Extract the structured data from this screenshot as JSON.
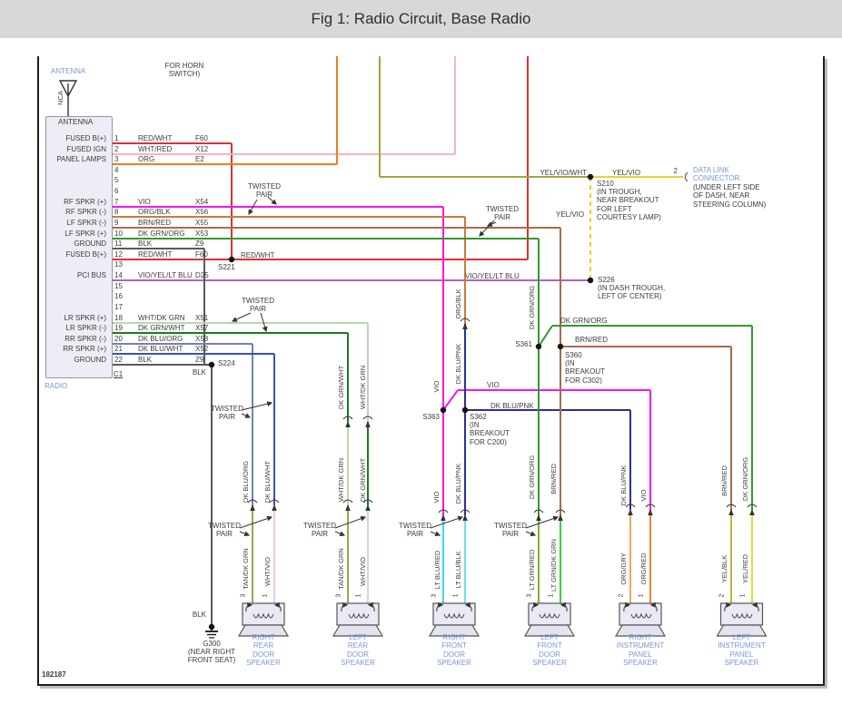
{
  "title": "Fig 1: Radio Circuit, Base Radio",
  "figure_id": "182187",
  "ui": {
    "title_bg": "#d8d8d8",
    "label_blue": "#7b96d8",
    "ink": "#3c3c3c",
    "component_fill": "#EDEDF6",
    "component_border": "#9494AE"
  },
  "notes": {
    "horn_switch": "FOR HORN\nSWITCH)"
  },
  "antenna": {
    "label": "ANTENNA",
    "box_label": "ANTENNA",
    "mast_label": "NCA"
  },
  "radio": {
    "label": "RADIO",
    "connector_label": "C1",
    "pins": [
      {
        "pin": "1",
        "function": "FUSED B(+)",
        "wire": "RED_WHT",
        "circuit": "F60"
      },
      {
        "pin": "2",
        "function": "FUSED IGN",
        "wire": "WHT_RED",
        "circuit": "X12"
      },
      {
        "pin": "3",
        "function": "PANEL LAMPS",
        "wire": "ORG",
        "circuit": "E2"
      },
      {
        "pin": "4"
      },
      {
        "pin": "5"
      },
      {
        "pin": "6"
      },
      {
        "pin": "7",
        "function": "RF SPKR (+)",
        "wire": "VIO",
        "circuit": "X54"
      },
      {
        "pin": "8",
        "function": "RF SPKR (-)",
        "wire": "ORG_BLK",
        "circuit": "X56"
      },
      {
        "pin": "9",
        "function": "LF SPKR (-)",
        "wire": "BRN_RED",
        "circuit": "X55"
      },
      {
        "pin": "10",
        "function": "LF SPKR (+)",
        "wire": "DK_GRN_ORG",
        "circuit": "X53"
      },
      {
        "pin": "11",
        "function": "GROUND",
        "wire": "BLK",
        "circuit": "Z9"
      },
      {
        "pin": "12",
        "function": "FUSED B(+)",
        "wire": "RED_WHT",
        "circuit": "F60"
      },
      {
        "pin": "13"
      },
      {
        "pin": "14",
        "function": "PCI BUS",
        "wire": "VIO_YEL_LT_BLU",
        "circuit": "D25"
      },
      {
        "pin": "15"
      },
      {
        "pin": "16"
      },
      {
        "pin": "17"
      },
      {
        "pin": "18",
        "function": "LR SPKR (+)",
        "wire": "WHT_DK_GRN",
        "circuit": "X51"
      },
      {
        "pin": "19",
        "function": "LR SPKR (-)",
        "wire": "DK_GRN_WHT",
        "circuit": "X57"
      },
      {
        "pin": "20",
        "function": "RR SPKR (-)",
        "wire": "DK_BLU_ORG",
        "circuit": "X58"
      },
      {
        "pin": "21",
        "function": "RR SPKR (+)",
        "wire": "DK_BLU_WHT",
        "circuit": "X52"
      },
      {
        "pin": "22",
        "function": "GROUND",
        "wire": "BLK",
        "circuit": "Z9"
      }
    ]
  },
  "wires": {
    "RED_WHT": {
      "label": "RED/WHT",
      "color": "#e0312d"
    },
    "WHT_RED": {
      "label": "WHT/RED",
      "color": "#f2b6be"
    },
    "ORG": {
      "label": "ORG",
      "color": "#f07d1e"
    },
    "YEL_VIO_WHT": {
      "label": "YEL/VIO/WHT",
      "color": "#a6a243"
    },
    "YEL_VIO": {
      "label": "YEL/VIO",
      "color": "#efd02c"
    },
    "VIO_YEL_LT_BLU": {
      "label": "VIO/YEL/LT BLU",
      "color": "#b361bc"
    },
    "VIO": {
      "label": "VIO",
      "color": "#f714f7"
    },
    "ORG_BLK": {
      "label": "ORG/BLK",
      "color": "#cd7a38"
    },
    "BRN_RED": {
      "label": "BRN/RED",
      "color": "#ad6a47"
    },
    "DK_GRN_ORG": {
      "label": "DK GRN/ORG",
      "color": "#2f9a32"
    },
    "BLK": {
      "label": "BLK",
      "color": "#5a5a5a"
    },
    "WHT_DK_GRN": {
      "label": "WHT/DK GRN",
      "color": "#b8d8ae"
    },
    "DK_GRN_WHT": {
      "label": "DK GRN/WHT",
      "color": "#177d1f"
    },
    "DK_BLU_ORG": {
      "label": "DK BLU/ORG",
      "color": "#7381b3"
    },
    "DK_BLU_WHT": {
      "label": "DK BLU/WHT",
      "color": "#3d50b5"
    },
    "DK_BLU_PNK": {
      "label": "DK BLU/PNK",
      "color": "#2c2f96"
    },
    "TAN_DK_GRN": {
      "label": "TAN/DK GRN",
      "color": "#a2a352"
    },
    "WHT_VIO": {
      "label": "WHT/VIO",
      "color": "#eac9ea"
    },
    "LT_BLU_RED": {
      "label": "LT BLU/RED",
      "color": "#43d7e8"
    },
    "LT_BLU_BLK": {
      "label": "LT BLU/BLK",
      "color": "#67e3ec"
    },
    "LT_GRN_RED": {
      "label": "LT GRN/RED",
      "color": "#7fae3a"
    },
    "LT_GRN_DK_GRN": {
      "label": "LT GRN/DK GRN",
      "color": "#3bcf3b"
    },
    "ORG_GRY": {
      "label": "ORG/GRY",
      "color": "#f2a85c"
    },
    "ORG_RED": {
      "label": "ORG/RED",
      "color": "#f28233"
    },
    "YEL_BLK": {
      "label": "YEL/BLK",
      "color": "#bdb732"
    },
    "YEL_RED": {
      "label": "YEL/RED",
      "color": "#f1d73a"
    }
  },
  "twisted_pair": "TWISTED\nPAIR",
  "splices": {
    "s221": {
      "name": "S221"
    },
    "s224": {
      "name": "S224"
    },
    "s210": {
      "name": "S210",
      "location": "(IN TROUGH,\nNEAR BREAKOUT\nFOR LEFT\nCOURTESY LAMP)"
    },
    "s226": {
      "name": "S226",
      "location": "(IN DASH TROUGH,\nLEFT OF CENTER)"
    },
    "s360": {
      "name": "S360",
      "location": "(IN\nBREAKOUT\nFOR C302)"
    },
    "s361": {
      "name": "S361"
    },
    "s362": {
      "name": "S362",
      "location": "(IN\nBREAKOUT\nFOR C200)"
    },
    "s363": {
      "name": "S363"
    },
    "g300": {
      "name": "G300",
      "location": "(NEAR RIGHT\nFRONT SEAT)"
    }
  },
  "data_link_connector": {
    "pin": "2",
    "name": "DATA LINK\nCONNECTOR",
    "location": "(UNDER LEFT SIDE\nOF DASH, NEAR\nSTEERING COLUMN)"
  },
  "speakers": [
    {
      "name": "RIGHT\nREAR\nDOOR\nSPEAKER",
      "pin_left": "3",
      "pin_right": "1"
    },
    {
      "name": "LEFT\nREAR\nDOOR\nSPEAKER",
      "pin_left": "3",
      "pin_right": "1"
    },
    {
      "name": "RIGHT\nFRONT\nDOOR\nSPEAKER",
      "pin_left": "3",
      "pin_right": "1"
    },
    {
      "name": "LEFT\nFRONT\nDOOR\nSPEAKER",
      "pin_left": "3",
      "pin_right": "1"
    },
    {
      "name": "RIGHT\nINSTRUMENT\nPANEL\nSPEAKER",
      "pin_left": "2",
      "pin_right": "1"
    },
    {
      "name": "LEFT\nINSTRUMENT\nPANEL\nSPEAKER",
      "pin_left": "2",
      "pin_right": "1"
    }
  ]
}
